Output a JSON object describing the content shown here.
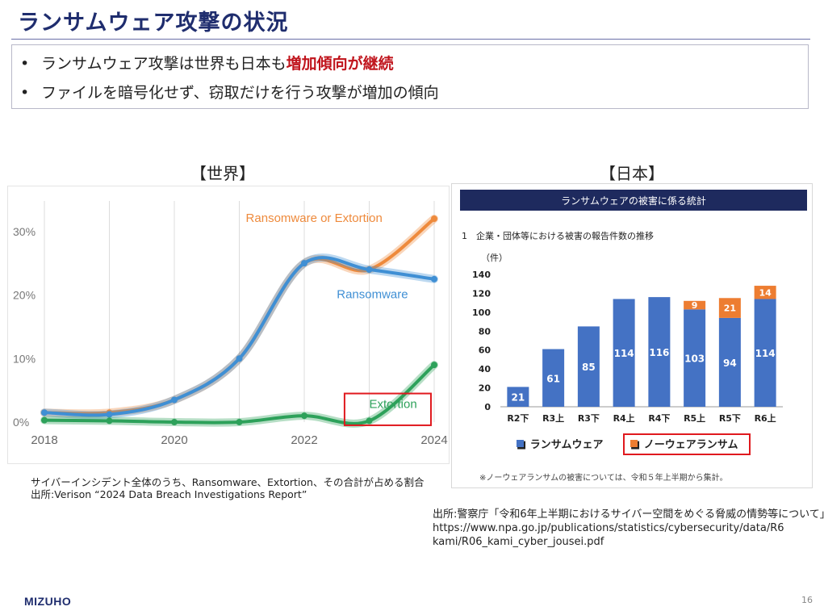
{
  "title": "ランサムウェア攻撃の状況",
  "bullets": {
    "dot": "•",
    "b1_pre": "ランサムウェア攻撃は世界も日本も",
    "b1_highlight": "増加傾向が継続",
    "b2": "ファイルを暗号化せず、窃取だけを行う攻撃が増加の傾向"
  },
  "world": {
    "heading": "【世界】",
    "caption_line1": "サイバーインシデント全体のうち、Ransomware、Extortion、その合計が占める割合",
    "caption_line2": "出所:Verison “2024 Data Breach Investigations Report”"
  },
  "japan": {
    "heading": "【日本】",
    "source_line1": "出所:警察庁「令和6年上半期におけるサイバー空間をめぐる脅威の情勢等について」",
    "source_line2": "https://www.npa.go.jp/publications/statistics/cybersecurity/data/R6",
    "source_line3": "kami/R06_kami_cyber_jousei.pdf"
  },
  "chart_data": [
    {
      "type": "line",
      "x_ticks": [
        "2018",
        "2020",
        "2022",
        "2024"
      ],
      "y_ticks": [
        "0%",
        "10%",
        "20%",
        "30%"
      ],
      "xlim": [
        2018,
        2024
      ],
      "ylim": [
        0,
        32
      ],
      "x": [
        2018,
        2019,
        2020,
        2021,
        2022,
        2023,
        2024
      ],
      "series": [
        {
          "name": "Ransomware or Extortion",
          "color": "#ee8a3c",
          "values": [
            1.5,
            1.5,
            3.5,
            10,
            25,
            24,
            32
          ]
        },
        {
          "name": "Ransomware",
          "color": "#3f8fd4",
          "values": [
            1.5,
            1.2,
            3.5,
            10,
            25,
            24,
            22.5
          ]
        },
        {
          "name": "Extortion",
          "color": "#2da15a",
          "values": [
            0.3,
            0.2,
            0,
            0,
            1,
            0.2,
            9
          ]
        }
      ],
      "grid": "vertical",
      "annotation": "Extortion"
    },
    {
      "type": "bar",
      "header": "ランサムウェアの被害に係る統計",
      "subtitle": "1　企業・団体等における被害の報告件数の推移",
      "ylabel": "（件）",
      "ylim": [
        0,
        140
      ],
      "y_ticks": [
        0,
        20,
        40,
        60,
        80,
        100,
        120,
        140
      ],
      "categories": [
        "R2下",
        "R3上",
        "R3下",
        "R4上",
        "R4下",
        "R5上",
        "R5下",
        "R6上"
      ],
      "series": [
        {
          "name": "ランサムウェア",
          "color": "#4472c4",
          "values": [
            21,
            61,
            85,
            114,
            116,
            103,
            94,
            114
          ]
        },
        {
          "name": "ノーウェアランサム",
          "color": "#ed7d31",
          "values": [
            null,
            null,
            null,
            null,
            null,
            9,
            21,
            14
          ]
        }
      ],
      "legend": "bottom",
      "legend_marker": "■",
      "footnote": "※ノーウェアランサムの被害については、令和５年上半期から集計。"
    }
  ],
  "footer": {
    "logo": "MIZUHO",
    "page": "16"
  }
}
